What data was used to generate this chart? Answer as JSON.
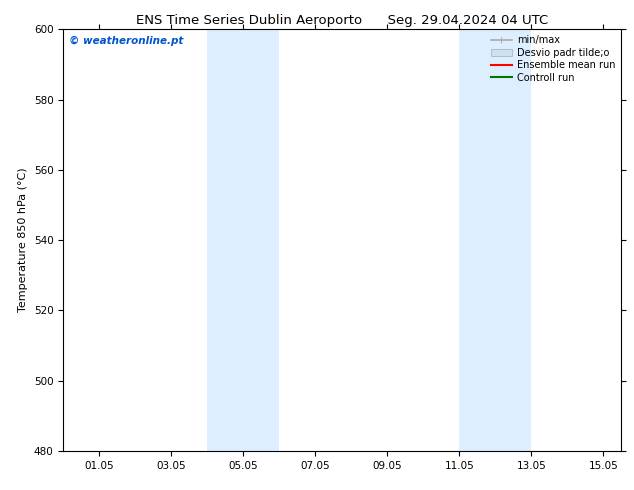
{
  "title_left": "ENS Time Series Dublin Aeroporto",
  "title_right": "Seg. 29.04.2024 04 UTC",
  "ylabel": "Temperature 850 hPa (°C)",
  "watermark": "© weatheronline.pt",
  "watermark_color": "#0055cc",
  "ylim": [
    480,
    600
  ],
  "yticks": [
    480,
    500,
    520,
    540,
    560,
    580,
    600
  ],
  "xlim_start": 0,
  "xlim_end": 15.5,
  "xtick_labels": [
    "01.05",
    "03.05",
    "05.05",
    "07.05",
    "09.05",
    "11.05",
    "13.05",
    "15.05"
  ],
  "xtick_positions": [
    1,
    3,
    5,
    7,
    9,
    11,
    13,
    15
  ],
  "shaded_bands": [
    {
      "x_start": 4.0,
      "x_end": 6.0
    },
    {
      "x_start": 11.0,
      "x_end": 13.0
    }
  ],
  "shaded_color": "#ddeeff",
  "bg_color": "#ffffff",
  "plot_bg_color": "#ffffff",
  "legend_entries": [
    {
      "label": "min/max",
      "color": "#aaaaaa",
      "lw": 1.2,
      "style": "solid"
    },
    {
      "label": "Desvio padr tilde;o",
      "color": "#cce0f0",
      "lw": 6,
      "style": "solid"
    },
    {
      "label": "Ensemble mean run",
      "color": "#ff0000",
      "lw": 1.5,
      "style": "solid"
    },
    {
      "label": "Controll run",
      "color": "#007700",
      "lw": 1.5,
      "style": "solid"
    }
  ],
  "title_fontsize": 9.5,
  "label_fontsize": 8,
  "tick_fontsize": 7.5,
  "legend_fontsize": 7,
  "watermark_fontsize": 7.5
}
